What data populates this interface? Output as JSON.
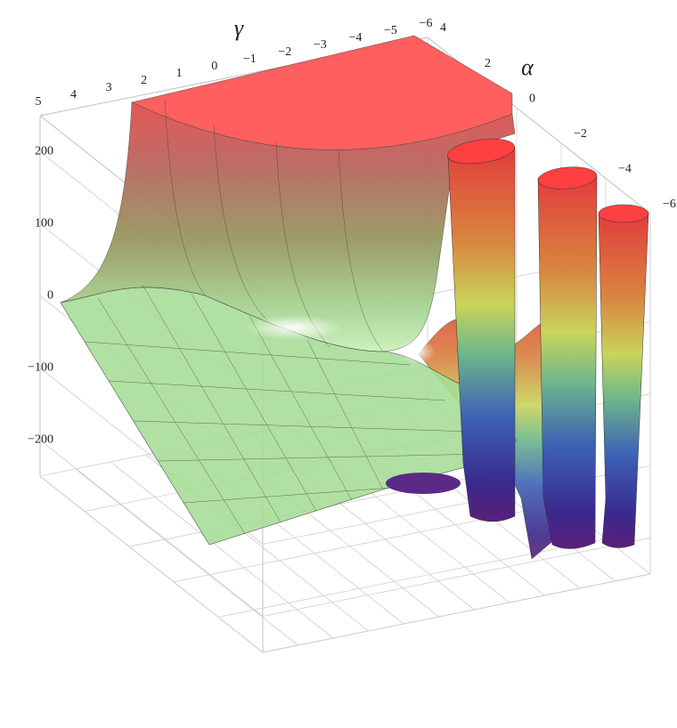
{
  "chart_data": {
    "type": "surface3d",
    "x_label": "γ",
    "y_label": "α",
    "xlim": [
      -6,
      5
    ],
    "xticks": [
      5,
      4,
      3,
      2,
      1,
      0,
      {
        "value": -1,
        "label": "−1"
      },
      {
        "value": -2,
        "label": "−2"
      },
      {
        "value": -3,
        "label": "−3"
      },
      {
        "value": -4,
        "label": "−4"
      },
      {
        "value": -5,
        "label": "−5"
      },
      {
        "value": -6,
        "label": "−6"
      }
    ],
    "ylim": [
      -6,
      4
    ],
    "yticks": [
      4,
      2,
      0,
      {
        "value": -2,
        "label": "−2"
      },
      {
        "value": -4,
        "label": "−4"
      },
      {
        "value": -6,
        "label": "−6"
      }
    ],
    "zlim": [
      -250,
      250
    ],
    "zticks": [
      200,
      100,
      0,
      {
        "value": -100,
        "label": "−100"
      },
      {
        "value": -200,
        "label": "−200"
      }
    ],
    "grid": true
  }
}
